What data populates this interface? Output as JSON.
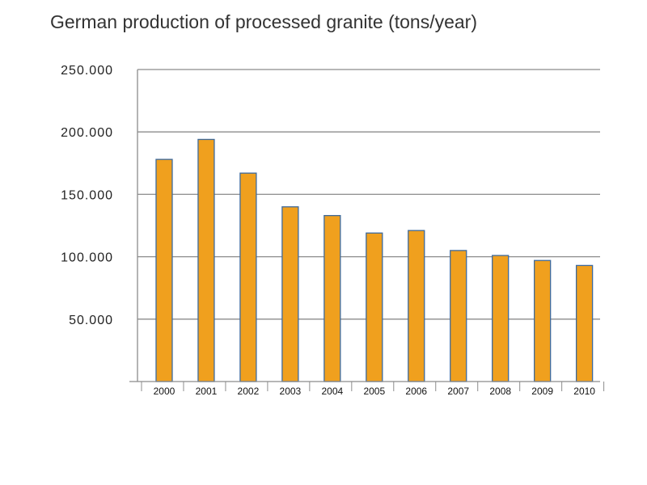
{
  "chart_data": {
    "type": "bar",
    "title": "German production of processed granite (tons/year)",
    "xlabel": "",
    "ylabel": "",
    "categories": [
      "2000",
      "2001",
      "2002",
      "2003",
      "2004",
      "2005",
      "2006",
      "2007",
      "2008",
      "2009",
      "2010"
    ],
    "values": [
      178000,
      194000,
      167000,
      140000,
      133000,
      119000,
      121000,
      105000,
      101000,
      97000,
      93000
    ],
    "ylim": [
      0,
      250000
    ],
    "yticks": [
      50000,
      100000,
      150000,
      200000,
      250000
    ],
    "ytick_labels": [
      "50.000",
      "100.000",
      "150.000",
      "200.000",
      "250.000"
    ],
    "grid": true,
    "legend": "none",
    "colors": {
      "bar_fill": "#f0a01e",
      "bar_stroke": "#3d6a9e",
      "grid": "#8c8c8c",
      "axis": "#8c8c8c"
    }
  }
}
